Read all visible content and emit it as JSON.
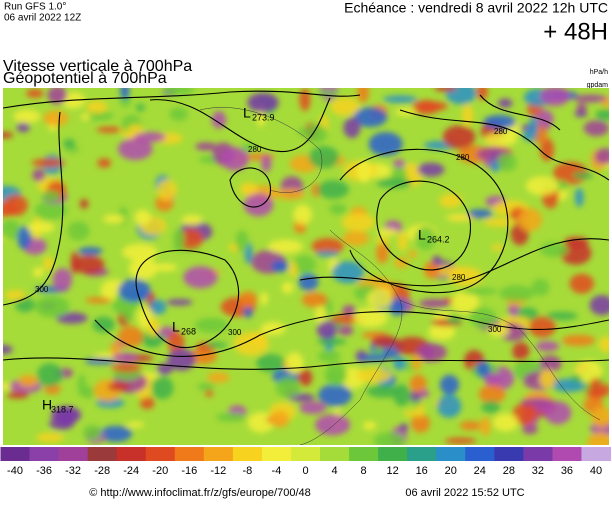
{
  "header": {
    "run": "Run GFS 1.0°",
    "run_date": "06 avril 2022 12Z",
    "echeance": "Echéance : vendredi 8 avril 2022 12h UTC",
    "lead": "+ 48H"
  },
  "titles": {
    "line1": "Vitesse verticale à 700hPa",
    "line2": "Géopotentiel à 700hPa",
    "unit1": "hPa/h",
    "unit2": "gpdam"
  },
  "map": {
    "centers": [
      {
        "type": "L",
        "value": 273.9
      },
      {
        "type": "L",
        "value": 264.2
      },
      {
        "type": "L",
        "value": 268
      },
      {
        "type": "H",
        "value": 318.7
      }
    ],
    "contour_labels": [
      280,
      280,
      280,
      280,
      300,
      300,
      300
    ]
  },
  "colorbar": {
    "ticks": [
      -40,
      -36,
      -32,
      -28,
      -24,
      -20,
      -16,
      -12,
      -8,
      -4,
      0,
      4,
      8,
      12,
      16,
      20,
      24,
      28,
      32,
      36,
      40
    ],
    "colors": [
      "#6a2c91",
      "#8b3fa8",
      "#a0409a",
      "#9a3a3a",
      "#c8302a",
      "#e04a20",
      "#f07a1a",
      "#f5a51a",
      "#f7d21e",
      "#f2ee3a",
      "#d4ea3a",
      "#a6dc3a",
      "#6cc83a",
      "#3fb04a",
      "#2aa08a",
      "#2a8fc8",
      "#2a5fd0",
      "#3a3ab0",
      "#7a3aa8",
      "#b04ab0",
      "#c8a8e0"
    ]
  },
  "footer": {
    "source": "© http://www.infoclimat.fr/z/gfs/europe/700/48",
    "timestamp": "06 avril 2022 15:52 UTC"
  }
}
